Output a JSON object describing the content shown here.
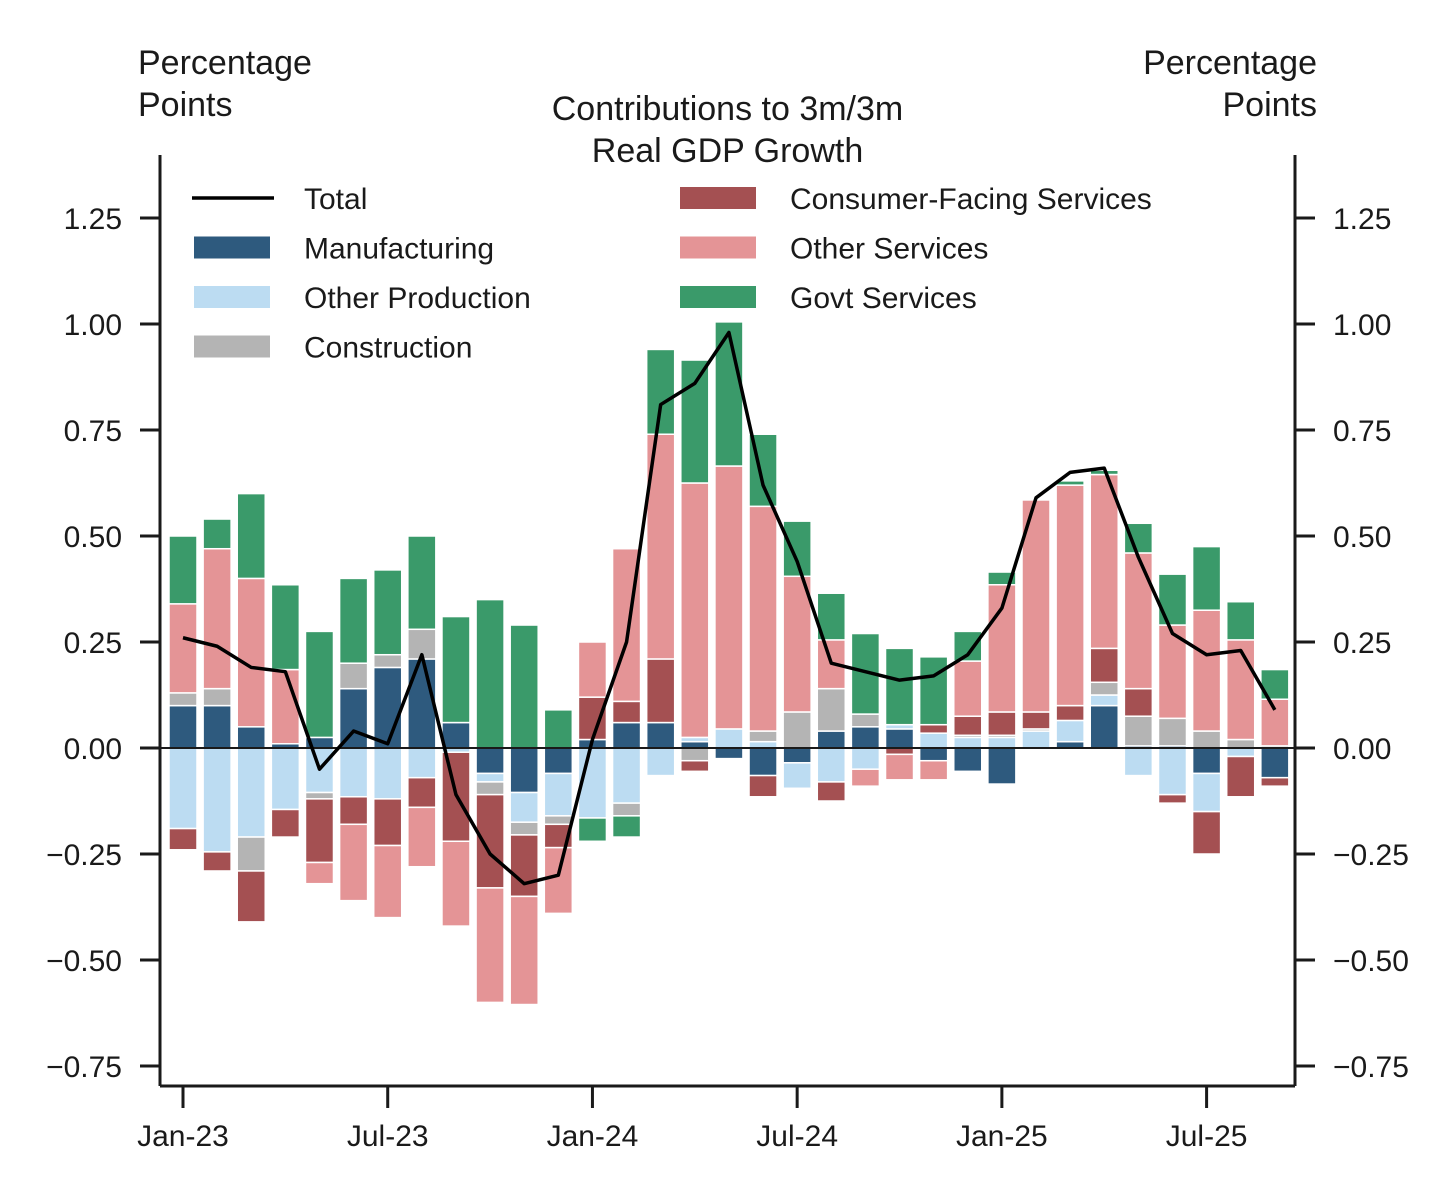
{
  "chart_data": {
    "type": "bar",
    "stacked": true,
    "title": "Contributions to 3m/3m Real GDP Growth",
    "ylabel_left": "Percentage Points",
    "ylabel_right": "Percentage Points",
    "xlabel": "",
    "ylim": [
      -0.78,
      1.4
    ],
    "yticks": [
      -0.75,
      -0.5,
      -0.25,
      0.0,
      0.25,
      0.5,
      0.75,
      1.0,
      1.25
    ],
    "ytick_labels": [
      "−0.75",
      "−0.50",
      "−0.25",
      "0.00",
      "0.25",
      "0.50",
      "0.75",
      "1.00",
      "1.25"
    ],
    "xtick_labels": [
      "Jan-23",
      "Jul-23",
      "Jan-24",
      "Jul-24",
      "Jan-25",
      "Jul-25"
    ],
    "xtick_indices": [
      0,
      6,
      12,
      18,
      24,
      30
    ],
    "legend_position": "top",
    "categories": [
      "Jan-23",
      "Feb-23",
      "Mar-23",
      "Apr-23",
      "May-23",
      "Jun-23",
      "Jul-23",
      "Aug-23",
      "Sep-23",
      "Oct-23",
      "Nov-23",
      "Dec-23",
      "Jan-24",
      "Feb-24",
      "Mar-24",
      "Apr-24",
      "May-24",
      "Jun-24",
      "Jul-24",
      "Aug-24",
      "Sep-24",
      "Oct-24",
      "Nov-24",
      "Dec-24",
      "Jan-25",
      "Feb-25",
      "Mar-25",
      "Apr-25",
      "May-25",
      "Jun-25",
      "Jul-25",
      "Aug-25",
      "Sep-25"
    ],
    "series": [
      {
        "name": "Manufacturing",
        "color": "#2e5a7e",
        "values": [
          0.1,
          0.1,
          0.05,
          0.01,
          0.025,
          0.14,
          0.19,
          0.21,
          0.06,
          -0.06,
          -0.105,
          -0.06,
          0.02,
          0.06,
          0.06,
          0.015,
          -0.025,
          -0.065,
          -0.035,
          0.04,
          0.05,
          0.045,
          -0.03,
          -0.055,
          -0.085,
          0.0,
          0.015,
          0.1,
          0.005,
          0.005,
          -0.06,
          0.0,
          -0.07
        ]
      },
      {
        "name": "Other Production",
        "color": "#bcdcf2",
        "values": [
          -0.19,
          -0.245,
          -0.21,
          -0.145,
          -0.105,
          -0.115,
          -0.12,
          -0.07,
          -0.01,
          -0.02,
          -0.07,
          -0.1,
          -0.165,
          -0.13,
          -0.065,
          0.01,
          0.045,
          0.015,
          -0.06,
          -0.08,
          -0.05,
          0.01,
          0.035,
          0.025,
          0.025,
          0.04,
          0.05,
          0.025,
          -0.065,
          -0.11,
          -0.09,
          -0.02,
          0.0
        ]
      },
      {
        "name": "Construction",
        "color": "#b4b4b4",
        "values": [
          0.03,
          0.04,
          -0.08,
          0.0,
          -0.015,
          0.06,
          0.03,
          0.07,
          0.0,
          -0.03,
          -0.03,
          -0.02,
          0.0,
          -0.03,
          0.0,
          -0.03,
          0.0,
          0.025,
          0.085,
          0.1,
          0.03,
          0.0,
          0.0,
          0.005,
          0.005,
          0.005,
          0.0,
          0.03,
          0.07,
          0.065,
          0.04,
          0.02,
          0.005
        ]
      },
      {
        "name": "Consumer-Facing Services",
        "color": "#a45052",
        "values": [
          -0.05,
          -0.045,
          -0.12,
          -0.065,
          -0.15,
          -0.065,
          -0.11,
          -0.07,
          -0.21,
          -0.22,
          -0.145,
          -0.055,
          0.1,
          0.05,
          0.15,
          -0.025,
          0.0,
          -0.05,
          0.0,
          -0.045,
          0.0,
          -0.015,
          0.02,
          0.045,
          0.055,
          0.04,
          0.035,
          0.08,
          0.065,
          -0.02,
          -0.1,
          -0.095,
          -0.02
        ]
      },
      {
        "name": "Other Services",
        "color": "#e49496",
        "values": [
          0.21,
          0.33,
          0.35,
          0.175,
          -0.05,
          -0.18,
          -0.17,
          -0.14,
          -0.2,
          -0.27,
          -0.255,
          -0.155,
          0.13,
          0.36,
          0.53,
          0.6,
          0.62,
          0.53,
          0.32,
          0.115,
          -0.04,
          -0.06,
          -0.045,
          0.13,
          0.3,
          0.5,
          0.52,
          0.41,
          0.32,
          0.22,
          0.285,
          0.235,
          0.11
        ]
      },
      {
        "name": "Govt Services",
        "color": "#3a9a6a",
        "values": [
          0.16,
          0.07,
          0.2,
          0.2,
          0.25,
          0.2,
          0.2,
          0.22,
          0.25,
          0.35,
          0.29,
          0.09,
          -0.055,
          -0.05,
          0.2,
          0.29,
          0.34,
          0.17,
          0.13,
          0.11,
          0.19,
          0.18,
          0.16,
          0.07,
          0.03,
          0.0,
          0.01,
          0.01,
          0.07,
          0.12,
          0.15,
          0.09,
          0.07
        ]
      }
    ],
    "line": {
      "name": "Total",
      "color": "#000000",
      "values": [
        0.26,
        0.24,
        0.19,
        0.18,
        -0.05,
        0.04,
        0.01,
        0.22,
        -0.11,
        -0.25,
        -0.32,
        -0.3,
        0.02,
        0.25,
        0.81,
        0.86,
        0.98,
        0.62,
        0.44,
        0.2,
        0.18,
        0.16,
        0.17,
        0.22,
        0.33,
        0.59,
        0.65,
        0.66,
        0.45,
        0.27,
        0.22,
        0.23,
        0.09
      ]
    },
    "legend": [
      {
        "label": "Total",
        "kind": "line",
        "color": "#000000"
      },
      {
        "label": "Manufacturing",
        "kind": "patch",
        "color": "#2e5a7e"
      },
      {
        "label": "Other Production",
        "kind": "patch",
        "color": "#bcdcf2"
      },
      {
        "label": "Construction",
        "kind": "patch",
        "color": "#b4b4b4"
      },
      {
        "label": "Consumer-Facing Services",
        "kind": "patch",
        "color": "#a45052"
      },
      {
        "label": "Other Services",
        "kind": "patch",
        "color": "#e49496"
      },
      {
        "label": "Govt Services",
        "kind": "patch",
        "color": "#3a9a6a"
      }
    ],
    "grid": false
  }
}
